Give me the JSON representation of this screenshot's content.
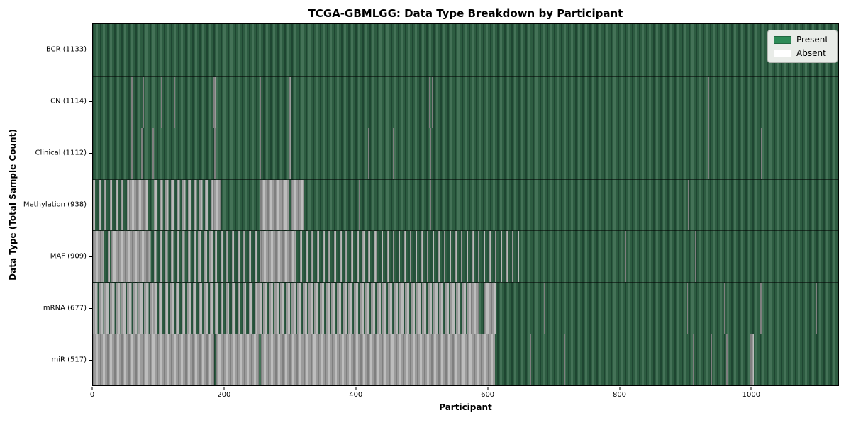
{
  "chart_data": {
    "type": "heatmap",
    "title": "TCGA-GBMLGG: Data Type Breakdown by Participant",
    "xlabel": "Participant",
    "ylabel": "Data Type (Total Sample Count)",
    "x_range": [
      0,
      1133
    ],
    "x_ticks": [
      0,
      200,
      400,
      600,
      800,
      1000
    ],
    "total_participants": 1133,
    "legend": [
      {
        "label": "Present",
        "color": "#2e8b57"
      },
      {
        "label": "Absent",
        "color": "#ffffff"
      }
    ],
    "legend_position": "upper right",
    "colors": {
      "present_bar": "#2d5c41",
      "present_bar_edge": "#1e4531",
      "absent_bar": "#9b9b9b",
      "absent_bar_light": "#bdbdbd"
    },
    "rows": [
      {
        "name": "bcr",
        "label": "BCR (1133)",
        "data_type": "BCR",
        "present_count": 1133,
        "absent_runs": [],
        "mixed_runs": []
      },
      {
        "name": "cn",
        "label": "CN (1114)",
        "data_type": "CN",
        "present_count": 1114,
        "absent_runs": [
          [
            58,
            60
          ],
          [
            76,
            78
          ],
          [
            104,
            106
          ],
          [
            123,
            125
          ],
          [
            183,
            187
          ],
          [
            254,
            256
          ],
          [
            298,
            302
          ],
          [
            511,
            513
          ],
          [
            515,
            517
          ],
          [
            935,
            937
          ]
        ],
        "mixed_runs": []
      },
      {
        "name": "clinical",
        "label": "Clinical (1112)",
        "data_type": "Clinical",
        "present_count": 1112,
        "absent_runs": [
          [
            58,
            60
          ],
          [
            73,
            75
          ],
          [
            91,
            93
          ],
          [
            184,
            188
          ],
          [
            254,
            256
          ],
          [
            298,
            302
          ],
          [
            418,
            420
          ],
          [
            456,
            458
          ],
          [
            512,
            514
          ],
          [
            935,
            937
          ],
          [
            1016,
            1018
          ]
        ],
        "mixed_runs": []
      },
      {
        "name": "methylation",
        "label": "Methylation (938)",
        "data_type": "Methylation",
        "present_count": 938,
        "absent_runs": [
          [
            55,
            84
          ],
          [
            182,
            195
          ],
          [
            254,
            299
          ],
          [
            301,
            321
          ],
          [
            404,
            406
          ],
          [
            512,
            514
          ],
          [
            904,
            906
          ]
        ],
        "mixed_runs": [
          [
            0,
            55,
            0.4
          ],
          [
            93,
            182,
            0.55
          ]
        ]
      },
      {
        "name": "maf",
        "label": "MAF (909)",
        "data_type": "MAF",
        "present_count": 909,
        "absent_runs": [
          [
            0,
            14
          ],
          [
            27,
            84
          ],
          [
            256,
            306
          ],
          [
            809,
            811
          ],
          [
            915,
            917
          ],
          [
            1112,
            1114
          ]
        ],
        "mixed_runs": [
          [
            14,
            27,
            0.4
          ],
          [
            84,
            160,
            0.45
          ],
          [
            160,
            185,
            0.65
          ],
          [
            185,
            256,
            0.35
          ],
          [
            306,
            430,
            0.4
          ],
          [
            430,
            650,
            0.22
          ]
        ]
      },
      {
        "name": "mrna",
        "label": "mRNA (677)",
        "data_type": "mRNA",
        "present_count": 677,
        "absent_runs": [
          [
            575,
            587
          ],
          [
            594,
            613
          ],
          [
            686,
            688
          ],
          [
            903,
            904
          ],
          [
            959,
            961
          ],
          [
            1014,
            1018
          ],
          [
            1099,
            1101
          ]
        ],
        "mixed_runs": [
          [
            0,
            92,
            0.8
          ],
          [
            92,
            185,
            0.62
          ],
          [
            185,
            250,
            0.5
          ],
          [
            250,
            575,
            0.78
          ]
        ]
      },
      {
        "name": "mir",
        "label": "miR (517)",
        "data_type": "miR",
        "present_count": 517,
        "absent_runs": [
          [
            0,
            184
          ],
          [
            187,
            252
          ],
          [
            255,
            611
          ],
          [
            664,
            666
          ],
          [
            716,
            718
          ],
          [
            912,
            914
          ],
          [
            939,
            941
          ],
          [
            963,
            965
          ],
          [
            999,
            1005
          ]
        ],
        "mixed_runs": []
      }
    ]
  }
}
